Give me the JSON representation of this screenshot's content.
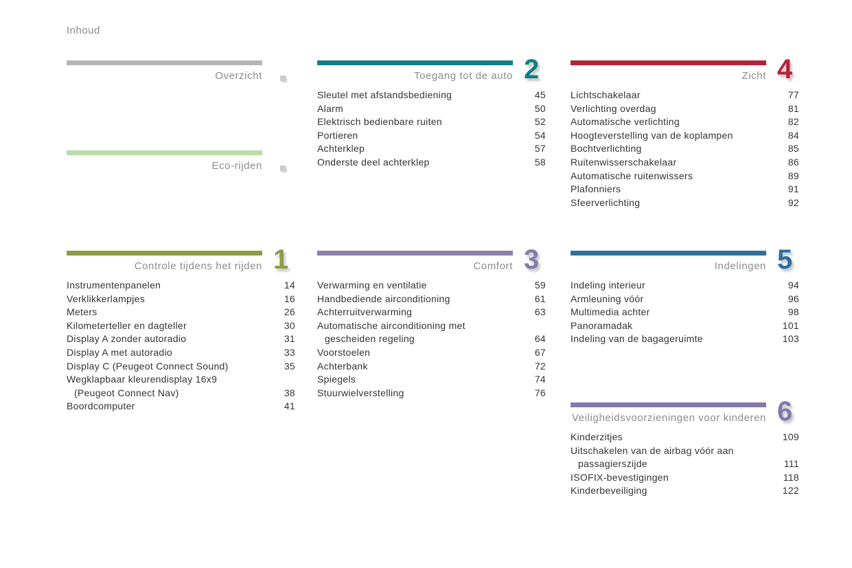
{
  "page": {
    "title": "Inhoud"
  },
  "sections": {
    "overzicht": {
      "title": "Overzicht",
      "bar_color": "#b5b5b5",
      "marker": true,
      "items": []
    },
    "eco": {
      "title": "Eco-rijden",
      "bar_color": "#badda9",
      "marker": true,
      "items": []
    },
    "controle": {
      "title": "Controle tijdens het rijden",
      "number": "1",
      "bar_color": "#8e9b41",
      "number_color": "#8e9b41",
      "items": [
        {
          "label": "Instrumentenpanelen",
          "page": "14"
        },
        {
          "label": "Verklikkerlampjes",
          "page": "16"
        },
        {
          "label": "Meters",
          "page": "26"
        },
        {
          "label": "Kilometerteller en dagteller",
          "page": "30"
        },
        {
          "label": "Display A zonder autoradio",
          "page": "31"
        },
        {
          "label": "Display A met autoradio",
          "page": "33"
        },
        {
          "label": "Display C (Peugeot Connect Sound)",
          "page": "35"
        },
        {
          "lines": [
            "Wegklapbaar kleurendisplay 16x9",
            "(Peugeot Connect Nav)"
          ],
          "page": "38"
        },
        {
          "label": "Boordcomputer",
          "page": "41"
        }
      ]
    },
    "toegang": {
      "title": "Toegang tot de auto",
      "number": "2",
      "bar_color": "#0f7e87",
      "number_color": "#0f7e87",
      "items": [
        {
          "label": "Sleutel met afstandsbediening",
          "page": "45"
        },
        {
          "label": "Alarm",
          "page": "50"
        },
        {
          "label": "Elektrisch bedienbare ruiten",
          "page": "52"
        },
        {
          "label": "Portieren",
          "page": "54"
        },
        {
          "label": "Achterklep",
          "page": "57"
        },
        {
          "label": "Onderste deel achterklep",
          "page": "58"
        }
      ]
    },
    "comfort": {
      "title": "Comfort",
      "number": "3",
      "bar_color": "#8a7fad",
      "number_color": "#857bab",
      "items": [
        {
          "label": "Verwarming en ventilatie",
          "page": "59"
        },
        {
          "label": "Handbediende airconditioning",
          "page": "61"
        },
        {
          "label": "Achterruitverwarming",
          "page": "63"
        },
        {
          "lines": [
            "Automatische airconditioning met",
            "gescheiden regeling"
          ],
          "page": "64"
        },
        {
          "label": "Voorstoelen",
          "page": "67"
        },
        {
          "label": "Achterbank",
          "page": "72"
        },
        {
          "label": "Spiegels",
          "page": "74"
        },
        {
          "label": "Stuurwielverstelling",
          "page": "76"
        }
      ]
    },
    "zicht": {
      "title": "Zicht",
      "number": "4",
      "bar_color": "#b52339",
      "number_color": "#b52339",
      "items": [
        {
          "label": "Lichtschakelaar",
          "page": "77"
        },
        {
          "label": "Verlichting overdag",
          "page": "81"
        },
        {
          "label": "Automatische verlichting",
          "page": "82"
        },
        {
          "label": "Hoogteverstelling van de koplampen",
          "page": "84"
        },
        {
          "label": "Bochtverlichting",
          "page": "85"
        },
        {
          "label": "Ruitenwisserschakelaar",
          "page": "86"
        },
        {
          "label": "Automatische ruitenwissers",
          "page": "89"
        },
        {
          "label": "Plafonniers",
          "page": "91"
        },
        {
          "label": "Sfeerverlichting",
          "page": "92"
        }
      ]
    },
    "indelingen": {
      "title": "Indelingen",
      "number": "5",
      "bar_color": "#2f6f9f",
      "number_color": "#2f6f9f",
      "items": [
        {
          "label": "Indeling interieur",
          "page": "94"
        },
        {
          "label": "Armleuning vóór",
          "page": "96"
        },
        {
          "label": "Multimedia achter",
          "page": "98"
        },
        {
          "label": "Panoramadak",
          "page": "101"
        },
        {
          "label": "Indeling van de bagageruimte",
          "page": "103"
        }
      ]
    },
    "veiligheid": {
      "title": "Veiligheidsvoorzieningen voor kinderen",
      "number": "6",
      "bar_color": "#8478ad",
      "number_color": "#8478ad",
      "items": [
        {
          "label": "Kinderzitjes",
          "page": "109"
        },
        {
          "lines": [
            "Uitschakelen van de airbag vóór aan",
            "passagierszijde"
          ],
          "page": "111"
        },
        {
          "label": "ISOFIX-bevestigingen",
          "page": "118"
        },
        {
          "label": "Kinderbeveiliging",
          "page": "122"
        }
      ]
    }
  }
}
